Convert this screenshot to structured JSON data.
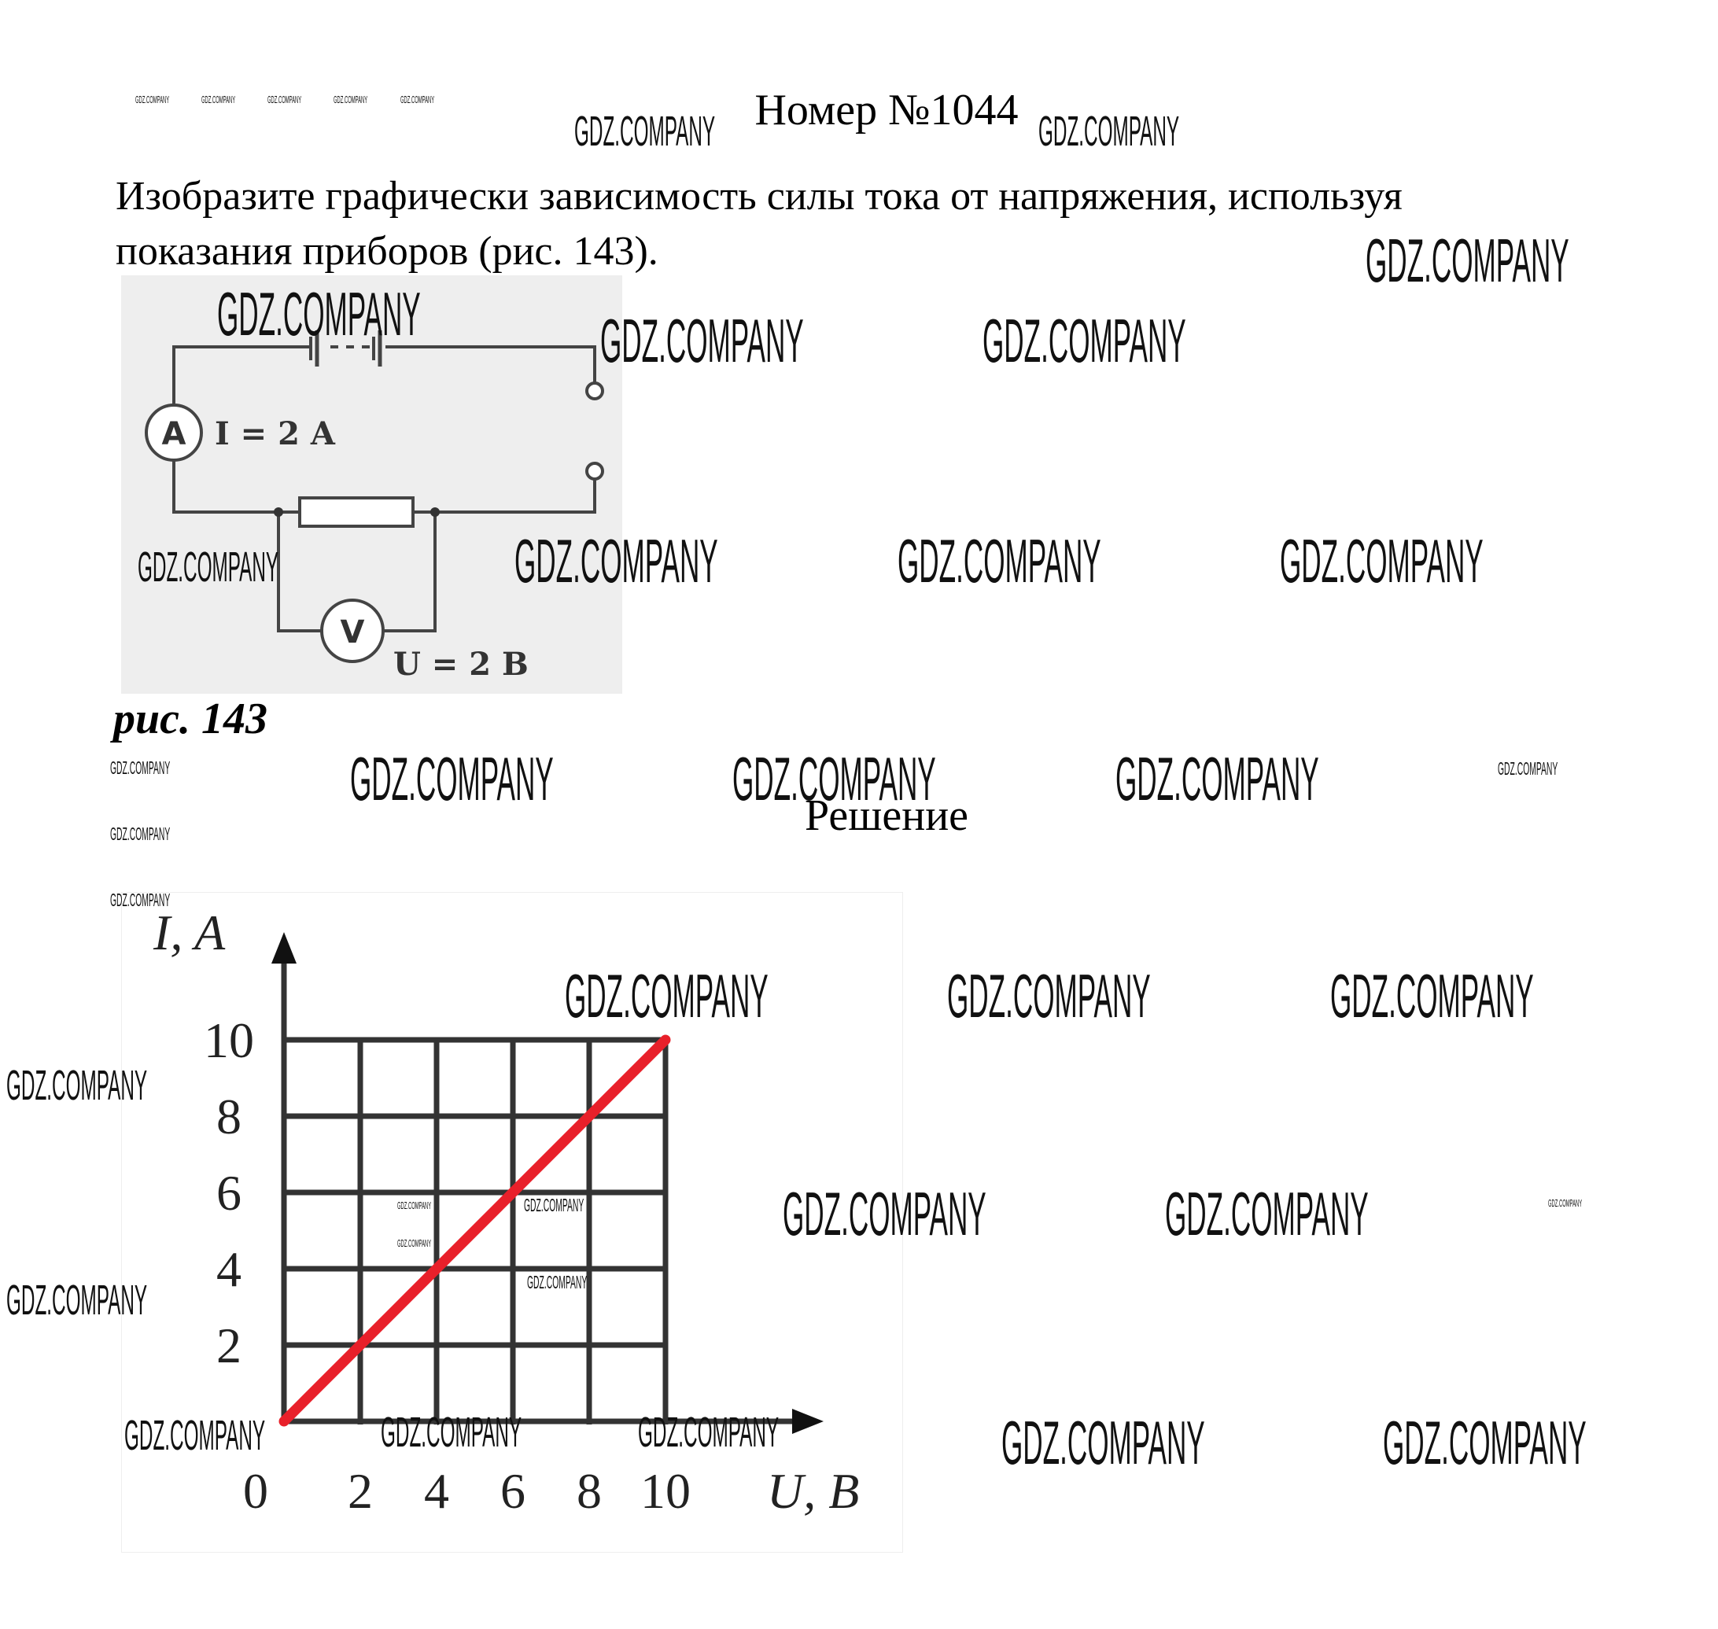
{
  "header": {
    "title": "Номер №1044"
  },
  "task": {
    "line1": "Изобразите графически зависимость силы тока от напряжения, используя",
    "line2": "показания приборов (рис. 143)."
  },
  "figure": {
    "caption": "рис. 143",
    "ammeter_symbol": "A",
    "voltmeter_symbol": "V",
    "current_reading": "I = 2 A",
    "voltage_reading": "U = 2 B"
  },
  "solution": {
    "heading": "Решение"
  },
  "watermark": "GDZ.COMPANY",
  "colors": {
    "line": "#e8202a",
    "grid": "#333333"
  },
  "chart_data": {
    "type": "line",
    "xlabel": "U, B",
    "ylabel": "I, A",
    "xlim": [
      0,
      10
    ],
    "ylim": [
      0,
      10
    ],
    "x_ticks": [
      "0",
      "2",
      "4",
      "6",
      "8",
      "10"
    ],
    "y_ticks": [
      "2",
      "4",
      "6",
      "8",
      "10"
    ],
    "grid": true,
    "series": [
      {
        "x": [
          0,
          10
        ],
        "y": [
          0,
          10
        ]
      }
    ]
  }
}
